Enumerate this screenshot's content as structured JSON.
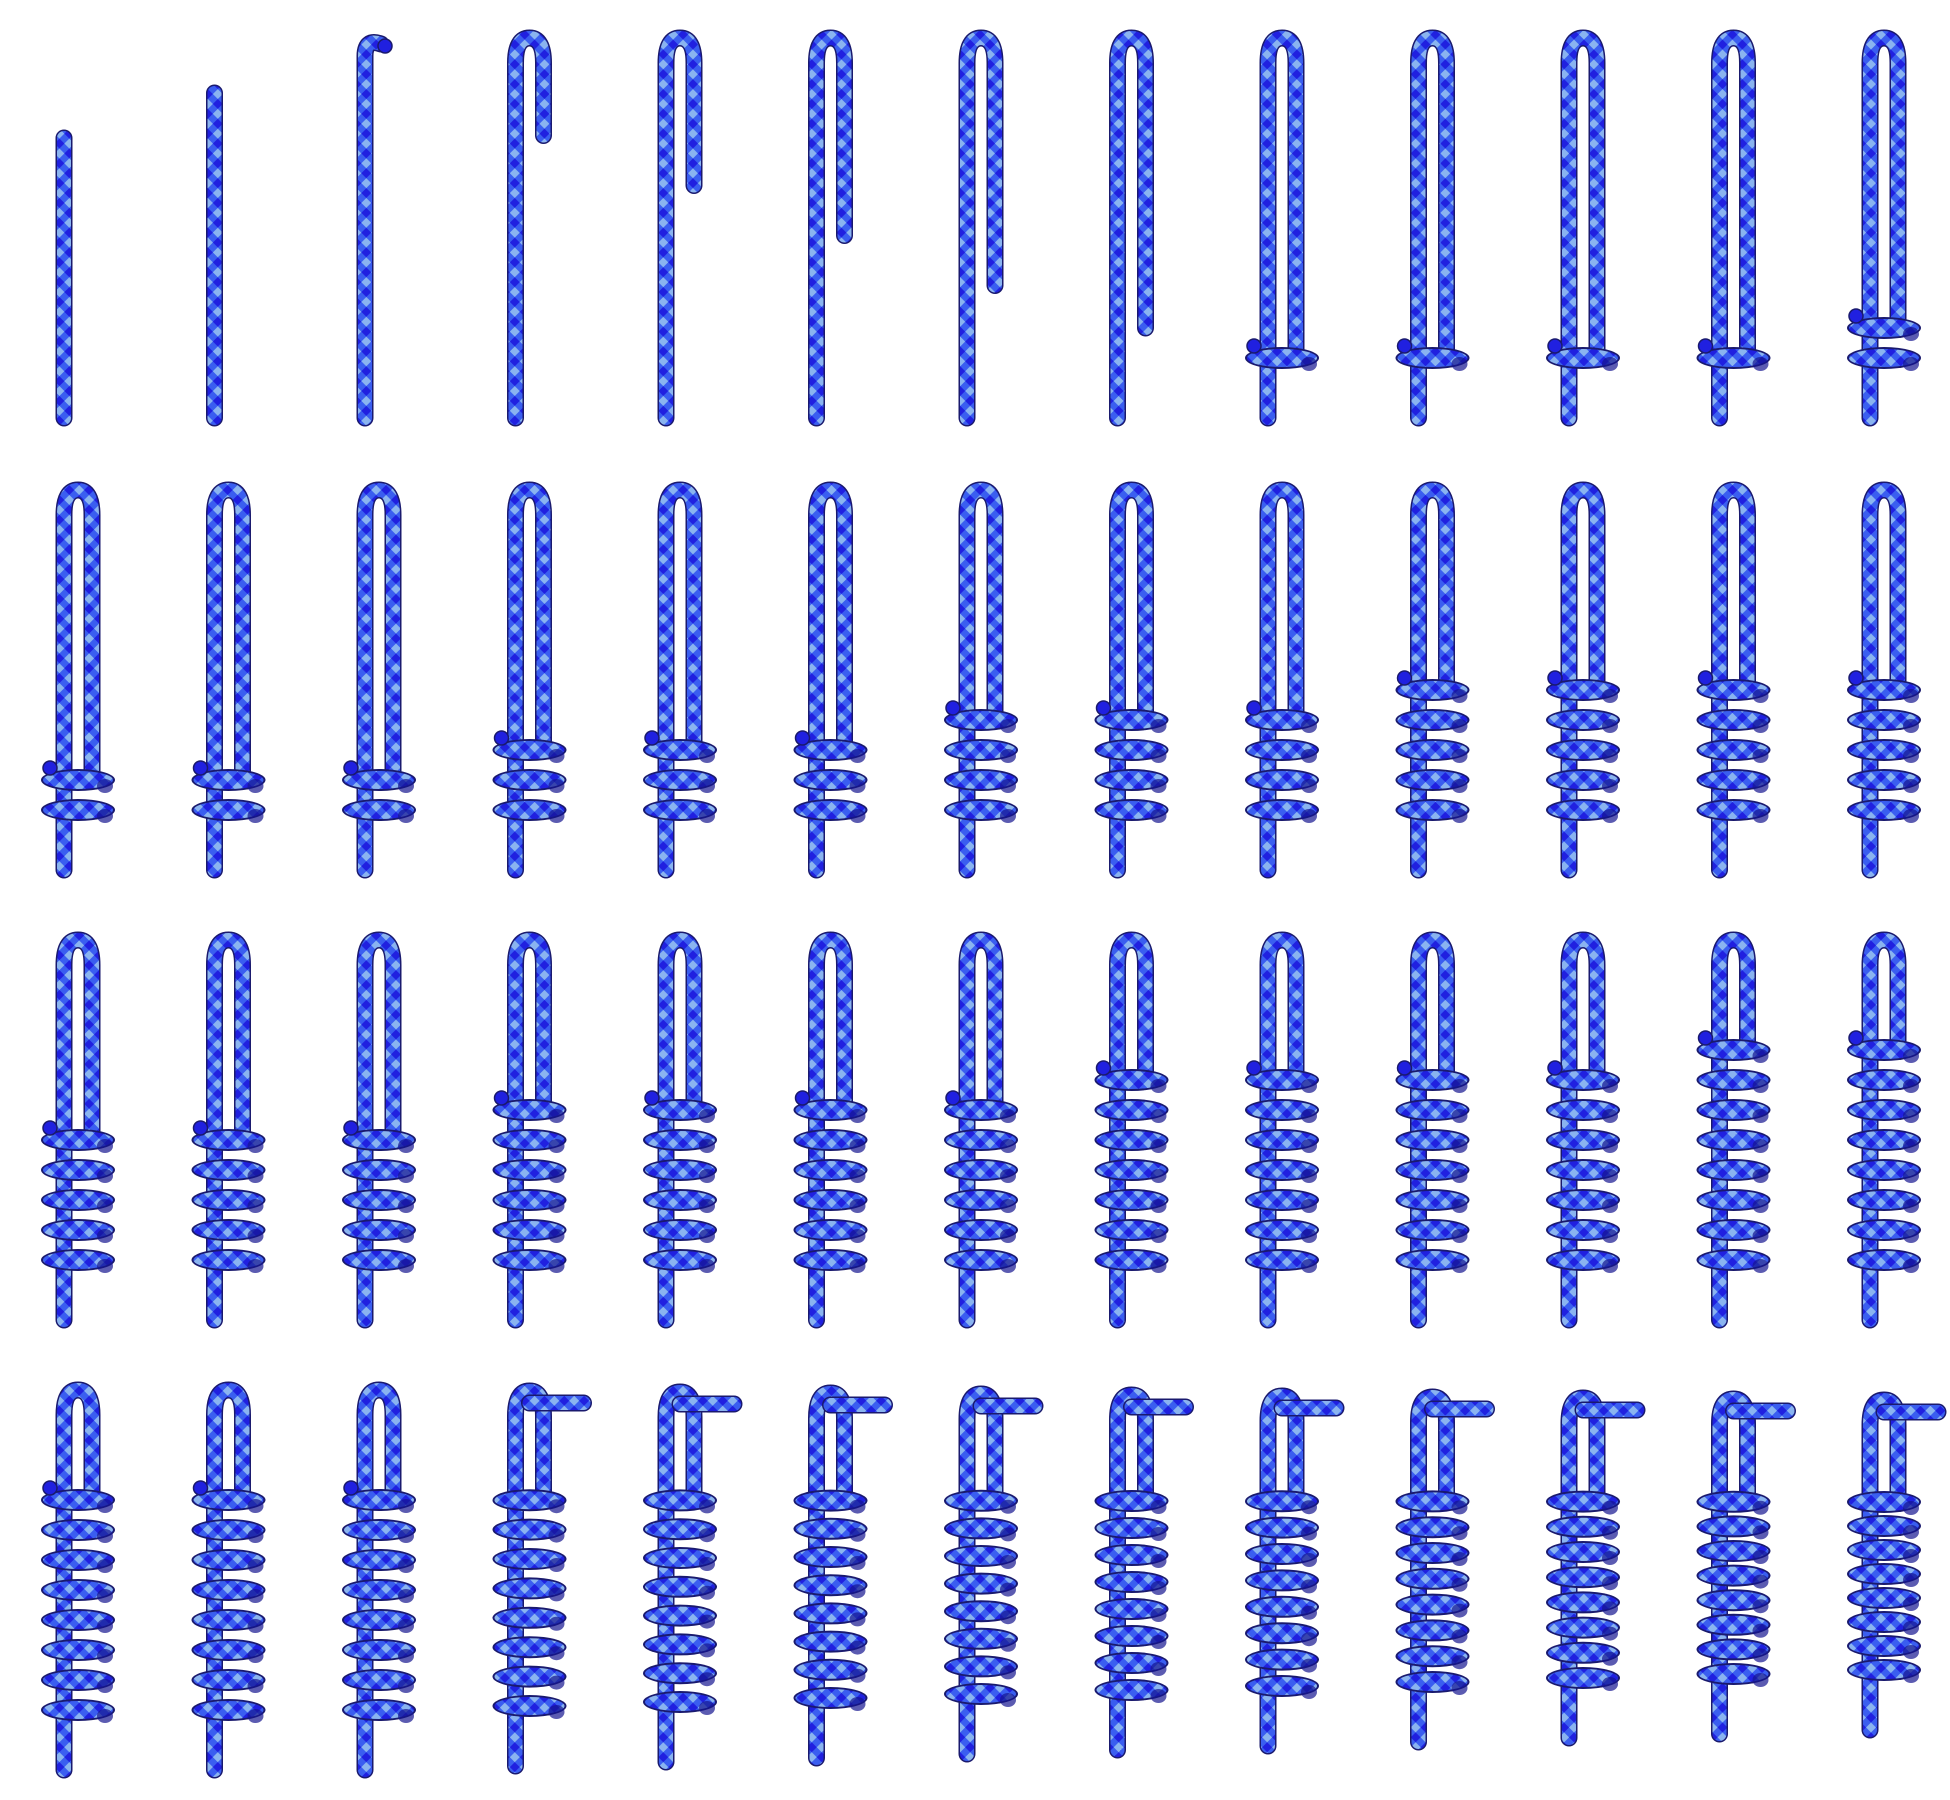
{
  "figure": {
    "rows": 4,
    "columns": 13,
    "frames": [
      {
        "stage": "straight",
        "progress": 0.0
      },
      {
        "stage": "straight",
        "progress": 0.15
      },
      {
        "stage": "straight",
        "progress": 0.3
      },
      {
        "stage": "fold",
        "progress": 0.15
      },
      {
        "stage": "fold",
        "progress": 0.35
      },
      {
        "stage": "fold",
        "progress": 0.55
      },
      {
        "stage": "fold",
        "progress": 0.75
      },
      {
        "stage": "fold",
        "progress": 0.92
      },
      {
        "stage": "wrap",
        "coils": 0.5
      },
      {
        "stage": "wrap",
        "coils": 0.8
      },
      {
        "stage": "wrap",
        "coils": 1.0
      },
      {
        "stage": "wrap",
        "coils": 1.3
      },
      {
        "stage": "wrap",
        "coils": 1.6
      },
      {
        "stage": "wrap",
        "coils": 2.0
      },
      {
        "stage": "wrap",
        "coils": 2.2
      },
      {
        "stage": "wrap",
        "coils": 2.4
      },
      {
        "stage": "wrap",
        "coils": 2.6
      },
      {
        "stage": "wrap",
        "coils": 3.0
      },
      {
        "stage": "wrap",
        "coils": 3.3
      },
      {
        "stage": "wrap",
        "coils": 3.6
      },
      {
        "stage": "wrap",
        "coils": 3.9
      },
      {
        "stage": "wrap",
        "coils": 4.2
      },
      {
        "stage": "wrap",
        "coils": 4.5
      },
      {
        "stage": "wrap",
        "coils": 4.8
      },
      {
        "stage": "wrap",
        "coils": 5.1
      },
      {
        "stage": "wrap",
        "coils": 5.4
      },
      {
        "stage": "wrap",
        "coils": 5.0
      },
      {
        "stage": "wrap",
        "coils": 5.2
      },
      {
        "stage": "wrap",
        "coils": 5.4
      },
      {
        "stage": "wrap",
        "coils": 5.7
      },
      {
        "stage": "wrap",
        "coils": 6.0
      },
      {
        "stage": "wrap",
        "coils": 6.2
      },
      {
        "stage": "wrap",
        "coils": 6.4
      },
      {
        "stage": "wrap",
        "coils": 6.6
      },
      {
        "stage": "wrap",
        "coils": 6.9
      },
      {
        "stage": "wrap",
        "coils": 7.1
      },
      {
        "stage": "wrap",
        "coils": 7.3
      },
      {
        "stage": "wrap",
        "coils": 7.5
      },
      {
        "stage": "wrap",
        "coils": 7.8
      },
      {
        "stage": "wrap",
        "coils": 7.8
      },
      {
        "stage": "wrap",
        "coils": 8.0
      },
      {
        "stage": "wrap",
        "coils": 8.2
      },
      {
        "stage": "dress",
        "coils": 8.4,
        "tighten": 0.1
      },
      {
        "stage": "dress",
        "coils": 8.4,
        "tighten": 0.2
      },
      {
        "stage": "dress",
        "coils": 8.4,
        "tighten": 0.3
      },
      {
        "stage": "dress",
        "coils": 8.4,
        "tighten": 0.4
      },
      {
        "stage": "dress",
        "coils": 8.4,
        "tighten": 0.5
      },
      {
        "stage": "dress",
        "coils": 8.4,
        "tighten": 0.6
      },
      {
        "stage": "dress",
        "coils": 8.4,
        "tighten": 0.7
      },
      {
        "stage": "dress",
        "coils": 8.4,
        "tighten": 0.8
      },
      {
        "stage": "dress",
        "coils": 8.4,
        "tighten": 0.9
      },
      {
        "stage": "dress",
        "coils": 8.4,
        "tighten": 1.0
      }
    ]
  },
  "colors": {
    "background": "#ffffff",
    "rope_outline": "#1a1a6e",
    "rope_dark": "#2020e0",
    "rope_mid": "#3a5ef0",
    "rope_light": "#8ab4f0",
    "rope_shadow": "#151590"
  }
}
